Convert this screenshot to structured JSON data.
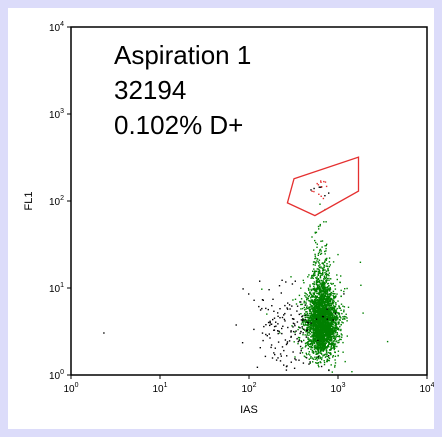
{
  "chart_data": {
    "type": "scatter",
    "title": "",
    "xlabel": "IAS",
    "ylabel": "FL1",
    "xscale": "log",
    "yscale": "log",
    "xlim": [
      1,
      10000
    ],
    "ylim": [
      1,
      10000
    ],
    "x_ticks": [
      {
        "value": 1,
        "base": "10",
        "exp": "0"
      },
      {
        "value": 10,
        "base": "10",
        "exp": "1"
      },
      {
        "value": 100,
        "base": "10",
        "exp": "2"
      },
      {
        "value": 1000,
        "base": "10",
        "exp": "3"
      },
      {
        "value": 10000,
        "base": "10",
        "exp": "4"
      }
    ],
    "y_ticks": [
      {
        "value": 1,
        "base": "10",
        "exp": "0"
      },
      {
        "value": 10,
        "base": "10",
        "exp": "1"
      },
      {
        "value": 100,
        "base": "10",
        "exp": "2"
      },
      {
        "value": 1000,
        "base": "10",
        "exp": "3"
      },
      {
        "value": 10000,
        "base": "10",
        "exp": "4"
      }
    ],
    "annotations": [
      "Aspiration 1",
      "32194",
      "0.102% D+"
    ],
    "gate": {
      "color": "#e53030",
      "polygon": [
        [
          320,
          180
        ],
        [
          1700,
          320
        ],
        [
          1700,
          130
        ],
        [
          550,
          68
        ],
        [
          270,
          95
        ]
      ]
    },
    "populations": [
      {
        "label": "",
        "color": "#008000",
        "x_center": 650,
        "y_center": 4,
        "description": "main dense cluster"
      },
      {
        "label": "",
        "color": "#000000",
        "x_center": 200,
        "y_center": 3.5,
        "description": "scattered debris"
      },
      {
        "label": "",
        "color": "#e53030",
        "x_center": 620,
        "y_center": 150,
        "description": "gated D+ events"
      }
    ],
    "colors": {
      "plot_border": "#000000",
      "background": "#ffffff",
      "frame": "#dcdcfa"
    }
  }
}
